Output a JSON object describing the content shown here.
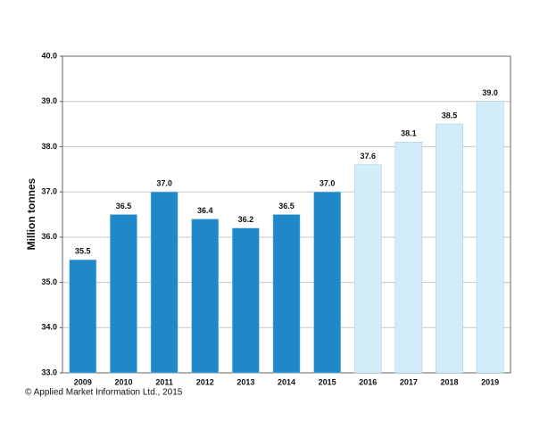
{
  "chart_data": {
    "type": "bar",
    "y_label": "Million tonnes",
    "source": "© Applied Market Information Ltd., 2015",
    "categories": [
      "2009",
      "2010",
      "2011",
      "2012",
      "2013",
      "2014",
      "2015",
      "2016",
      "2017",
      "2018",
      "2019"
    ],
    "values": [
      35.5,
      36.5,
      37.0,
      36.4,
      36.2,
      36.5,
      37.0,
      37.6,
      38.1,
      38.5,
      39.0
    ],
    "value_labels": [
      "35.5",
      "36.5",
      "37.0",
      "36.4",
      "36.2",
      "36.5",
      "37.0",
      "37.6",
      "38.1",
      "38.5",
      "39.0"
    ],
    "colors": [
      "#1f88c9",
      "#1f88c9",
      "#1f88c9",
      "#1f88c9",
      "#1f88c9",
      "#1f88c9",
      "#1f88c9",
      "#d3ecf9",
      "#d3ecf9",
      "#d3ecf9",
      "#d3ecf9"
    ],
    "ylim": [
      33,
      40
    ],
    "yticks": [
      {
        "value": 33,
        "label": "33.0"
      },
      {
        "value": 34,
        "label": "34.0"
      },
      {
        "value": 35,
        "label": "35.0"
      },
      {
        "value": 36,
        "label": "36.0"
      },
      {
        "value": 37,
        "label": "37.0"
      },
      {
        "value": 38,
        "label": "38.0"
      },
      {
        "value": 39,
        "label": "39.0"
      },
      {
        "value": 40,
        "label": "40.0"
      }
    ],
    "grid": true
  }
}
